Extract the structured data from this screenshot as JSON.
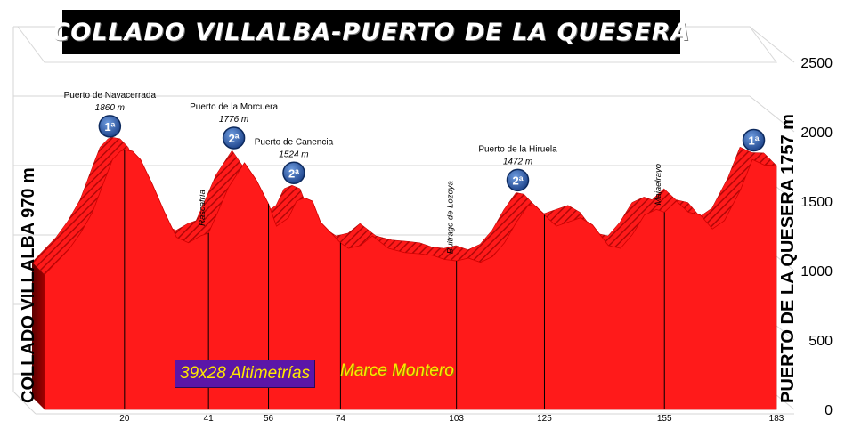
{
  "title": "COLLADO VILLALBA-PUERTO DE LA QUESERA",
  "start_label": "COLLADO VILLALBA 970 m",
  "end_label": "PUERTO DE LA QUESERA 1757 m",
  "credits": {
    "brand": "39x28 Altimetrías",
    "author": "Marce Montero"
  },
  "colors": {
    "fill": "#ff1a1a",
    "fill_dark": "#c40000",
    "hatch": "#c01010",
    "badge": "#1d4e9a"
  },
  "chart_data": {
    "type": "area",
    "xlabel": "",
    "ylabel": "",
    "ylim": [
      0,
      2500
    ],
    "y_ticks": [
      0,
      500,
      1000,
      1500,
      2000,
      2500
    ],
    "x_ticks": [
      20,
      41,
      56,
      74,
      103,
      125,
      155,
      183
    ],
    "grid": true,
    "profile": {
      "km": [
        0,
        3,
        6,
        9,
        12,
        15,
        17,
        19,
        20,
        22,
        24,
        27,
        30,
        33,
        36,
        39,
        41,
        43,
        46,
        50,
        53,
        56,
        58,
        61,
        63,
        65,
        67,
        69,
        72,
        74,
        76,
        79,
        82,
        86,
        90,
        94,
        97,
        100,
        103,
        106,
        109,
        112,
        115,
        118,
        121,
        123,
        125,
        128,
        131,
        134,
        137,
        141,
        144,
        147,
        150,
        153,
        155,
        158,
        161,
        164,
        167,
        170,
        174,
        177,
        180,
        183
      ],
      "elev": [
        970,
        1060,
        1150,
        1270,
        1420,
        1650,
        1800,
        1860,
        1870,
        1860,
        1800,
        1620,
        1420,
        1240,
        1200,
        1250,
        1270,
        1400,
        1600,
        1776,
        1650,
        1480,
        1320,
        1380,
        1500,
        1524,
        1500,
        1350,
        1260,
        1200,
        1160,
        1180,
        1250,
        1160,
        1130,
        1120,
        1110,
        1080,
        1070,
        1090,
        1060,
        1100,
        1200,
        1350,
        1472,
        1460,
        1400,
        1320,
        1350,
        1380,
        1330,
        1180,
        1160,
        1260,
        1400,
        1440,
        1420,
        1500,
        1420,
        1400,
        1300,
        1360,
        1580,
        1800,
        1760,
        1757
      ]
    },
    "annotations": [
      {
        "name": "Puerto de Navacerrada",
        "elevation": "1860 m",
        "km": 19,
        "elev": 1860,
        "category": "1ª"
      },
      {
        "name": "Puerto de la Morcuera",
        "elevation": "1776 m",
        "km": 50,
        "elev": 1776,
        "category": "2ª"
      },
      {
        "name": "Puerto de Canencia",
        "elevation": "1524 m",
        "km": 65,
        "elev": 1524,
        "category": "2ª"
      },
      {
        "name": "Puerto de la Hiruela",
        "elevation": "1472 m",
        "km": 121,
        "elev": 1472,
        "category": "2ª"
      },
      {
        "name": "",
        "elevation": "",
        "km": 180,
        "elev": 1760,
        "category": "1ª"
      }
    ],
    "towns": [
      {
        "name": "Rascafría",
        "km": 41
      },
      {
        "name": "Buitrago de Lozoya",
        "km": 103
      },
      {
        "name": "Majaelrayo",
        "km": 155
      }
    ]
  }
}
